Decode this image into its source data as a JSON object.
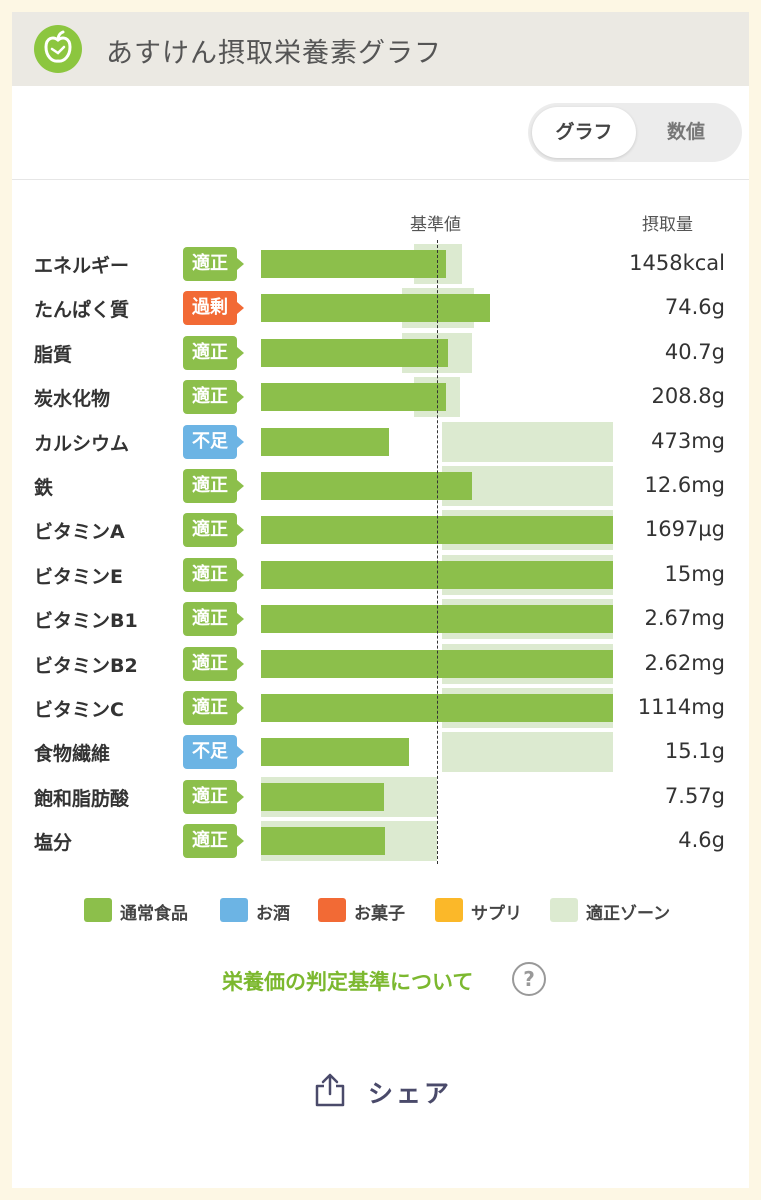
{
  "header": {
    "title": "あすけん摂取栄養素グラフ",
    "logo_icon": "apple-icon"
  },
  "toggle": {
    "graph_label": "グラフ",
    "numbers_label": "数値"
  },
  "table": {
    "ref_header": "基準値",
    "intake_header": "摂取量"
  },
  "colors": {
    "normal_food": "#8cbf4b",
    "alcohol": "#6cb4e4",
    "sweets": "#f26a35",
    "supplement": "#fbb829",
    "zone": "#dcead0",
    "badge_ok": "#8cbf4b",
    "badge_over": "#f26a35",
    "badge_under": "#6cb4e4"
  },
  "nutrients": [
    {
      "name": "エネルギー",
      "status": "適正",
      "value": "1458kcal"
    },
    {
      "name": "たんぱく質",
      "status": "過剰",
      "value": "74.6g"
    },
    {
      "name": "脂質",
      "status": "適正",
      "value": "40.7g"
    },
    {
      "name": "炭水化物",
      "status": "適正",
      "value": "208.8g"
    },
    {
      "name": "カルシウム",
      "status": "不足",
      "value": "473mg"
    },
    {
      "name": "鉄",
      "status": "適正",
      "value": "12.6mg"
    },
    {
      "name": "ビタミンA",
      "status": "適正",
      "value": "1697µg"
    },
    {
      "name": "ビタミンE",
      "status": "適正",
      "value": "15mg"
    },
    {
      "name": "ビタミンB1",
      "status": "適正",
      "value": "2.67mg"
    },
    {
      "name": "ビタミンB2",
      "status": "適正",
      "value": "2.62mg"
    },
    {
      "name": "ビタミンC",
      "status": "適正",
      "value": "1114mg"
    },
    {
      "name": "食物繊維",
      "status": "不足",
      "value": "15.1g"
    },
    {
      "name": "飽和脂肪酸",
      "status": "適正",
      "value": "7.57g"
    },
    {
      "name": "塩分",
      "status": "適正",
      "value": "4.6g"
    }
  ],
  "legend": [
    {
      "label": "通常食品",
      "color": "#8cbf4b"
    },
    {
      "label": "お酒",
      "color": "#6cb4e4"
    },
    {
      "label": "お菓子",
      "color": "#f26a35"
    },
    {
      "label": "サプリ",
      "color": "#fbb829"
    },
    {
      "label": "適正ゾーン",
      "color": "#dcead0"
    }
  ],
  "criteria": {
    "link_text": "栄養価の判定基準について",
    "help_icon": "question-icon",
    "help_glyph": "?"
  },
  "share": {
    "label": "シェア",
    "icon": "share-icon"
  }
}
